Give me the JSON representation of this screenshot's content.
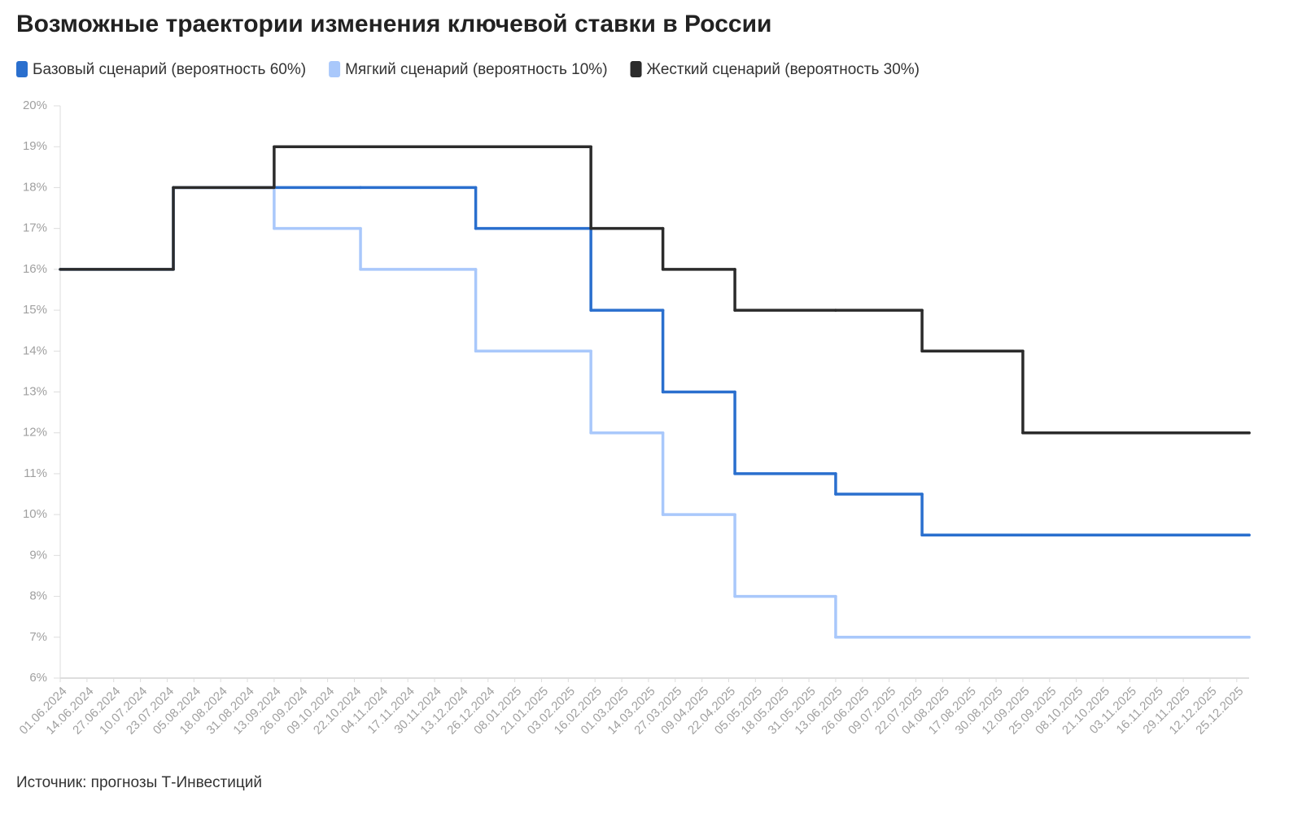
{
  "chart_data": {
    "type": "step-line",
    "title": "Возможные траектории изменения ключевой ставки в России",
    "source": "Источник: прогнозы Т-Инвестиций",
    "x": [
      "01.06.2024",
      "26.07.2024",
      "13.09.2024",
      "25.10.2024",
      "20.12.2024",
      "14.02.2025",
      "21.03.2025",
      "25.04.2025",
      "13.06.2025",
      "25.07.2025",
      "12.09.2025",
      "31.12.2025"
    ],
    "series": [
      {
        "name": "Базовый сценарий (вероятность 60%)",
        "color": "#2a6fce",
        "values": [
          16,
          18,
          18,
          18,
          17,
          15,
          13,
          11,
          10.5,
          9.5,
          9.5,
          9.5
        ]
      },
      {
        "name": "Мягкий сценарий (вероятность 10%)",
        "color": "#a9c8fb",
        "values": [
          16,
          18,
          17,
          16,
          14,
          12,
          10,
          8,
          7,
          7,
          7,
          7
        ]
      },
      {
        "name": "Жесткий сценарий (вероятность 30%)",
        "color": "#2b2b2b",
        "values": [
          16,
          18,
          19,
          19,
          19,
          17,
          16,
          15,
          15,
          14,
          12,
          12
        ]
      }
    ],
    "xlim": [
      "01.06.2024",
      "31.12.2025"
    ],
    "xticks": [
      "01.06.2024",
      "14.06.2024",
      "27.06.2024",
      "10.07.2024",
      "23.07.2024",
      "05.08.2024",
      "18.08.2024",
      "31.08.2024",
      "13.09.2024",
      "26.09.2024",
      "09.10.2024",
      "22.10.2024",
      "04.11.2024",
      "17.11.2024",
      "30.11.2024",
      "13.12.2024",
      "26.12.2024",
      "08.01.2025",
      "21.01.2025",
      "03.02.2025",
      "16.02.2025",
      "01.03.2025",
      "14.03.2025",
      "27.03.2025",
      "09.04.2025",
      "22.04.2025",
      "05.05.2025",
      "18.05.2025",
      "31.05.2025",
      "13.06.2025",
      "26.06.2025",
      "09.07.2025",
      "22.07.2025",
      "04.08.2025",
      "17.08.2025",
      "30.08.2025",
      "12.09.2025",
      "25.09.2025",
      "08.10.2025",
      "21.10.2025",
      "03.11.2025",
      "16.11.2025",
      "29.11.2025",
      "12.12.2025",
      "25.12.2025"
    ],
    "ylim": [
      6,
      20
    ],
    "yticks": [
      {
        "value": 6,
        "label": "6%"
      },
      {
        "value": 7,
        "label": "7%"
      },
      {
        "value": 8,
        "label": "8%"
      },
      {
        "value": 9,
        "label": "9%"
      },
      {
        "value": 10,
        "label": "10%"
      },
      {
        "value": 11,
        "label": "11%"
      },
      {
        "value": 12,
        "label": "12%"
      },
      {
        "value": 13,
        "label": "13%"
      },
      {
        "value": 14,
        "label": "14%"
      },
      {
        "value": 15,
        "label": "15%"
      },
      {
        "value": 16,
        "label": "16%"
      },
      {
        "value": 17,
        "label": "17%"
      },
      {
        "value": 18,
        "label": "18%"
      },
      {
        "value": 19,
        "label": "19%"
      },
      {
        "value": 20,
        "label": "20%"
      }
    ],
    "grid": false
  }
}
